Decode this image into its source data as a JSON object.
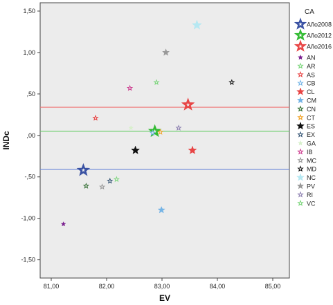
{
  "chart_data": {
    "type": "scatter",
    "xlabel": "EV",
    "ylabel": "INDc",
    "xlim": [
      80.8,
      85.3
    ],
    "ylim": [
      -1.72,
      1.6
    ],
    "x_ticks": [
      "81,00",
      "82,00",
      "83,00",
      "84,00",
      "85,00"
    ],
    "x_tick_values": [
      81,
      82,
      83,
      84,
      85
    ],
    "y_ticks": [
      "1,50",
      "1,00",
      ",50",
      ",00",
      "-,50",
      "-1,00",
      "-1,50"
    ],
    "y_tick_values": [
      1.5,
      1.0,
      0.5,
      0.0,
      -0.5,
      -1.0,
      -1.5
    ],
    "grid": false,
    "background": "#ececec",
    "legend_title": "CA",
    "legend_position": "right",
    "reference_lines": [
      {
        "y": 0.34,
        "color": "#f07070"
      },
      {
        "y": 0.05,
        "color": "#66cc66"
      },
      {
        "y": -0.41,
        "color": "#6a86d8"
      }
    ],
    "series": [
      {
        "name": "Año2008",
        "color": "#3a52a3",
        "big": true,
        "hollow": true,
        "points": [
          [
            81.58,
            -0.42
          ]
        ]
      },
      {
        "name": "Año2012",
        "color": "#33bb33",
        "big": true,
        "hollow": true,
        "points": [
          [
            82.87,
            0.05
          ]
        ]
      },
      {
        "name": "Año2016",
        "color": "#e84545",
        "big": true,
        "hollow": true,
        "points": [
          [
            83.47,
            0.37
          ]
        ]
      },
      {
        "name": "AN",
        "color": "#7a1f8f",
        "size": "small",
        "points": [
          [
            81.22,
            -1.07
          ]
        ]
      },
      {
        "name": "AR",
        "color": "#7cd67c",
        "size": "small",
        "hollow": true,
        "points": [
          [
            82.9,
            0.64
          ],
          [
            82.18,
            -0.53
          ]
        ]
      },
      {
        "name": "AS",
        "color": "#e84545",
        "size": "small",
        "hollow": true,
        "points": [
          [
            81.8,
            0.21
          ]
        ]
      },
      {
        "name": "CB",
        "color": "#74b4e6",
        "size": "small",
        "hollow": true,
        "points": [
          [
            82.83,
            0.03
          ]
        ]
      },
      {
        "name": "CL",
        "color": "#e84545",
        "size": "large",
        "points": [
          [
            83.55,
            -0.18
          ]
        ]
      },
      {
        "name": "CM",
        "color": "#74b4e6",
        "size": "medium",
        "points": [
          [
            82.99,
            -0.9
          ]
        ]
      },
      {
        "name": "CN",
        "color": "#2e6b2e",
        "size": "small",
        "hollow": true,
        "points": [
          [
            81.63,
            -0.61
          ]
        ]
      },
      {
        "name": "CT",
        "color": "#f0a020",
        "size": "small",
        "hollow": true,
        "points": [
          [
            82.97,
            0.04
          ]
        ]
      },
      {
        "name": "ES",
        "color": "#111111",
        "size": "large",
        "points": [
          [
            82.52,
            -0.18
          ]
        ]
      },
      {
        "name": "EX",
        "color": "#2e4f70",
        "size": "small",
        "hollow": true,
        "points": [
          [
            82.06,
            -0.55
          ]
        ]
      },
      {
        "name": "GA",
        "color": "#d8f0cc",
        "size": "small",
        "points": [
          [
            82.44,
            0.09
          ]
        ]
      },
      {
        "name": "IB",
        "color": "#cc3a8e",
        "size": "small",
        "hollow": true,
        "points": [
          [
            82.42,
            0.57
          ]
        ]
      },
      {
        "name": "MC",
        "color": "#999999",
        "size": "small",
        "hollow": true,
        "points": [
          [
            81.92,
            -0.62
          ]
        ]
      },
      {
        "name": "MD",
        "color": "#111111",
        "size": "small",
        "hollow": true,
        "points": [
          [
            84.26,
            0.64
          ]
        ]
      },
      {
        "name": "NC",
        "color": "#b6e8f2",
        "size": "xlarge",
        "points": [
          [
            83.63,
            1.33
          ]
        ]
      },
      {
        "name": "PV",
        "color": "#999999",
        "size": "medium",
        "points": [
          [
            83.07,
            1.0
          ]
        ]
      },
      {
        "name": "RI",
        "color": "#8c7fb0",
        "size": "small",
        "hollow": true,
        "points": [
          [
            83.3,
            0.09
          ]
        ]
      },
      {
        "name": "VC",
        "color": "#7cd67c",
        "size": "small",
        "hollow": true,
        "points": []
      }
    ]
  }
}
